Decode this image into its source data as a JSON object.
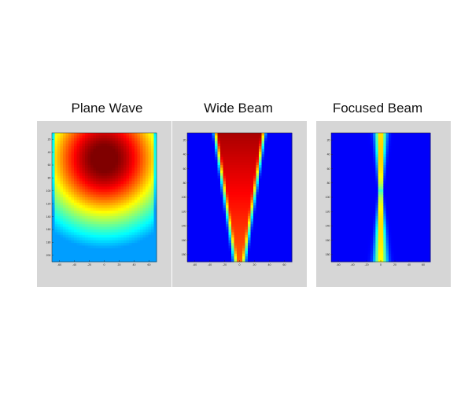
{
  "chart_data": [
    {
      "type": "heatmap",
      "title": "Plane Wave",
      "pattern": "plane-wave",
      "x_ticks": [
        "-60",
        "-40",
        "-20",
        "0",
        "20",
        "40",
        "60"
      ],
      "y_ticks": [
        "20",
        "40",
        "60",
        "80",
        "100",
        "120",
        "140",
        "160",
        "180",
        "200"
      ],
      "xlim": [
        -70,
        70
      ],
      "ylim": [
        10,
        210
      ],
      "colormap": "jet"
    },
    {
      "type": "heatmap",
      "title": "Wide Beam",
      "pattern": "wide-beam",
      "x_ticks": [
        "-60",
        "-40",
        "-20",
        "0",
        "20",
        "40",
        "60"
      ],
      "y_ticks": [
        "20",
        "40",
        "60",
        "80",
        "100",
        "120",
        "140",
        "160",
        "180"
      ],
      "xlim": [
        -70,
        70
      ],
      "ylim": [
        10,
        190
      ],
      "colormap": "jet"
    },
    {
      "type": "heatmap",
      "title": "Focused Beam",
      "pattern": "focused-beam",
      "x_ticks": [
        "-60",
        "-40",
        "-20",
        "0",
        "20",
        "40",
        "60"
      ],
      "y_ticks": [
        "20",
        "40",
        "60",
        "80",
        "100",
        "120",
        "140",
        "160",
        "180"
      ],
      "xlim": [
        -70,
        70
      ],
      "ylim": [
        10,
        190
      ],
      "colormap": "jet"
    }
  ],
  "colors": {
    "panel_background": "#d6d6d6",
    "field_low": "#0a1f9a",
    "field_high": "#8b0000"
  }
}
